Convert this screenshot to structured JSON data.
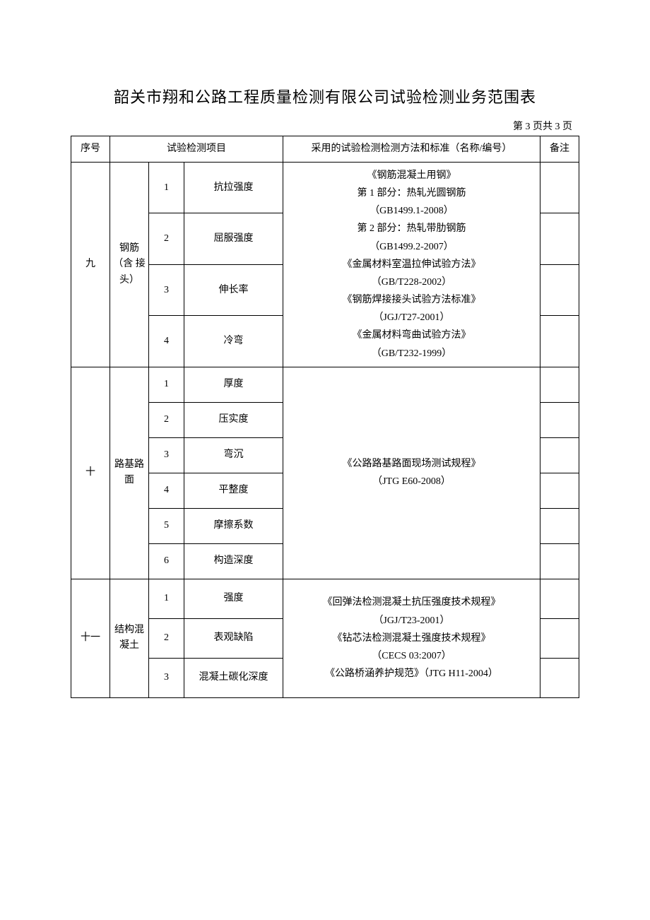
{
  "title": "韶关市翔和公路工程质量检测有限公司试验检测业务范围表",
  "page_indicator": "第 3 页共 3 页",
  "headers": {
    "seq": "序号",
    "item": "试验检测项目",
    "standard": "采用的试验检测检测方法和标准（名称/编号）",
    "note": "备注"
  },
  "sections": [
    {
      "seq": "九",
      "category": "钢筋（含 接头）",
      "items": [
        {
          "idx": "1",
          "name": "抗拉强度"
        },
        {
          "idx": "2",
          "name": "屈服强度"
        },
        {
          "idx": "3",
          "name": "伸长率"
        },
        {
          "idx": "4",
          "name": "冷弯"
        }
      ],
      "standard": "《钢筋混凝土用钢》\n第 1 部分：热轧光圆钢筋\n（GB1499.1-2008）\n第 2 部分：热轧带肋钢筋\n（GB1499.2-2007）\n《金属材料室温拉伸试验方法》\n（GB/T228-2002）\n《钢筋焊接接头试验方法标准》\n（JGJ/T27-2001）\n《金属材料弯曲试验方法》\n（GB/T232-1999）"
    },
    {
      "seq": "十",
      "category": "路基路面",
      "items": [
        {
          "idx": "1",
          "name": "厚度"
        },
        {
          "idx": "2",
          "name": "压实度"
        },
        {
          "idx": "3",
          "name": "弯沉"
        },
        {
          "idx": "4",
          "name": "平整度"
        },
        {
          "idx": "5",
          "name": "摩擦系数"
        },
        {
          "idx": "6",
          "name": "构造深度"
        }
      ],
      "standard": "《公路路基路面现场测试规程》\n（JTG E60-2008）"
    },
    {
      "seq": "十一",
      "category": "结构混凝土",
      "items": [
        {
          "idx": "1",
          "name": "强度"
        },
        {
          "idx": "2",
          "name": "表观缺陷"
        },
        {
          "idx": "3",
          "name": "混凝土碳化深度"
        }
      ],
      "standard": "《回弹法检测混凝土抗压强度技术规程》\n（JGJ/T23-2001）\n《钻芯法检测混凝土强度技术规程》\n（CECS 03:2007）\n《公路桥涵养护规范》（JTG H11-2004）"
    }
  ],
  "row_heights": {
    "h4": 68,
    "h6": 50,
    "h3": 56
  }
}
